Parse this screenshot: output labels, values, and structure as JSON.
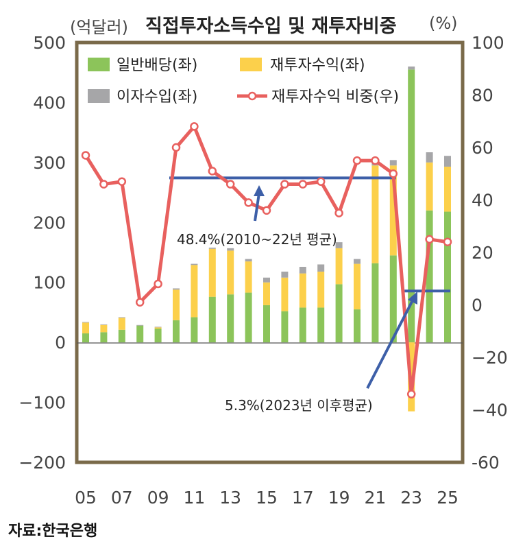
{
  "header": {
    "unit_left": "(억달러)",
    "title": "직접투자소득수입 및 재투자비중",
    "unit_right": "(%)"
  },
  "source": "자료:한국은행",
  "chart_data": {
    "type": "bar",
    "title": "직접투자소득수입 및 재투자비중",
    "categories": [
      "05",
      "06",
      "07",
      "08",
      "09",
      "10",
      "11",
      "12",
      "13",
      "14",
      "15",
      "16",
      "17",
      "18",
      "19",
      "20",
      "21",
      "22",
      "23",
      "24",
      "25"
    ],
    "x_tick_labels": [
      "05",
      "07",
      "09",
      "11",
      "13",
      "15",
      "17",
      "19",
      "21",
      "23",
      "25"
    ],
    "stacked": true,
    "series": [
      {
        "name": "일반배당(좌)",
        "axis": "left",
        "color": "#8cc45a",
        "values": [
          15,
          17,
          21,
          28,
          23,
          37,
          42,
          76,
          80,
          83,
          62,
          52,
          58,
          58,
          97,
          55,
          132,
          145,
          455,
          220,
          218
        ]
      },
      {
        "name": "재투자수익(좌)",
        "axis": "left",
        "color": "#fcd04b",
        "values": [
          18,
          12,
          20,
          0,
          2,
          51,
          87,
          80,
          73,
          52,
          38,
          56,
          57,
          60,
          60,
          76,
          163,
          150,
          -115,
          80,
          75
        ]
      },
      {
        "name": "이자수입(좌)",
        "axis": "left",
        "color": "#a6a6a8",
        "values": [
          1,
          1,
          1,
          1,
          1,
          2,
          2,
          2,
          4,
          4,
          8,
          10,
          11,
          12,
          10,
          8,
          6,
          9,
          5,
          17,
          18
        ]
      },
      {
        "name": "재투자수익 비중(우)",
        "axis": "right",
        "type": "line",
        "color": "#e8605e",
        "values": [
          57,
          46,
          47,
          1,
          8,
          60,
          68,
          51,
          46,
          39,
          36,
          46,
          46,
          47,
          35,
          55,
          55,
          50,
          -34,
          25,
          24
        ]
      }
    ],
    "y_left": {
      "ticks": [
        500,
        400,
        300,
        200,
        100,
        0,
        -100,
        -200
      ],
      "tick_labels": [
        "500",
        "400",
        "300",
        "200",
        "100",
        "0",
        "−100",
        "−200"
      ],
      "ylim": [
        -200,
        500
      ]
    },
    "y_right": {
      "ticks": [
        100,
        80,
        60,
        40,
        20,
        0,
        -20,
        -40,
        -60
      ],
      "tick_labels": [
        "100",
        "80",
        "60",
        "40",
        "20",
        "0",
        "−20",
        "−40",
        "-60"
      ],
      "ylim": [
        -60,
        100
      ]
    },
    "reference_lines": [
      {
        "label": "48.4%(2010~22년 평균)",
        "axis": "right",
        "value": 48.4,
        "from": "10",
        "to": "22",
        "color": "#3d5fa8"
      },
      {
        "label": "5.3%(2023년 이후평균)",
        "axis": "right",
        "value": 5.3,
        "from": "23",
        "to": "25",
        "color": "#3d5fa8"
      }
    ],
    "legend_position": "top-left",
    "grid": false
  }
}
